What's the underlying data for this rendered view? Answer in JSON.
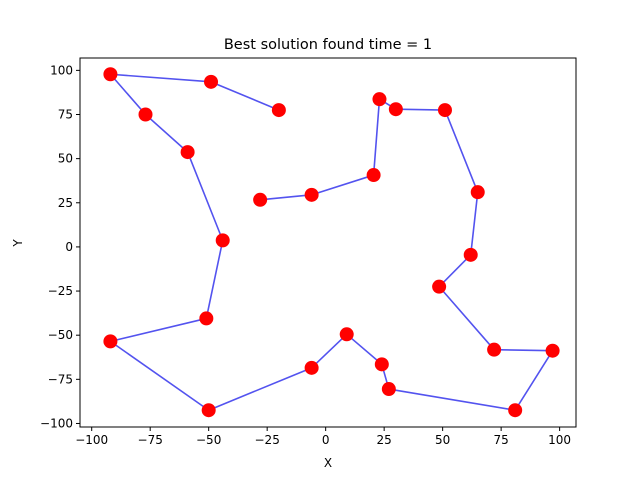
{
  "chart_data": {
    "type": "line",
    "title": "Best solution found time = 1",
    "xlabel": "X",
    "ylabel": "Y",
    "xlim": [
      -105,
      107
    ],
    "ylim": [
      -102,
      107
    ],
    "xticks": [
      -100,
      -75,
      -50,
      -25,
      0,
      25,
      50,
      75,
      100
    ],
    "yticks": [
      -100,
      -75,
      -50,
      -25,
      0,
      25,
      50,
      75,
      100
    ],
    "grid": false,
    "route_color": "#4a4aee",
    "city_color": "#ff0000",
    "route": [
      [
        -20,
        77.5
      ],
      [
        -49,
        93.5
      ],
      [
        -92,
        97.8
      ],
      [
        -77,
        75
      ],
      [
        -59,
        53.7
      ],
      [
        -44,
        3.7
      ],
      [
        -51,
        -40.5
      ],
      [
        -92,
        -53.5
      ],
      [
        -50,
        -92.5
      ],
      [
        -6,
        -68.5
      ],
      [
        9,
        -49.5
      ],
      [
        24,
        -66.5
      ],
      [
        27,
        -80.5
      ],
      [
        81,
        -92.5
      ],
      [
        97,
        -58.8
      ],
      [
        72,
        -58.2
      ],
      [
        48.5,
        -22.5
      ],
      [
        62,
        -4.5
      ],
      [
        65,
        31
      ],
      [
        51,
        77.5
      ],
      [
        30,
        78
      ],
      [
        23,
        83.7
      ],
      [
        20.5,
        40.7
      ],
      [
        -6,
        29.5
      ],
      [
        -28,
        26.7
      ]
    ]
  }
}
